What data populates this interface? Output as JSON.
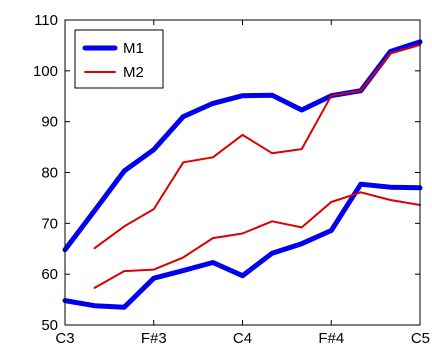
{
  "chart_data": {
    "type": "line",
    "title": "",
    "xlabel": "",
    "ylabel": "",
    "x_tick_labels": [
      "C3",
      "F#3",
      "C4",
      "F#4",
      "C5"
    ],
    "x_tick_positions": [
      0,
      6,
      12,
      18,
      24
    ],
    "xlim": [
      0,
      24
    ],
    "ylim": [
      50,
      110
    ],
    "y_ticks": [
      50,
      60,
      70,
      80,
      90,
      100,
      110
    ],
    "grid": false,
    "legend_position": "top-left",
    "series": [
      {
        "name": "M1",
        "color": "#0000ee",
        "line_width": "thick",
        "upper": {
          "x": [
            0,
            2,
            4,
            6,
            8,
            10,
            12,
            14,
            16,
            18,
            20,
            22,
            24
          ],
          "y": [
            64.8,
            72.5,
            80.3,
            84.5,
            91.0,
            93.6,
            95.1,
            95.2,
            92.3,
            95.1,
            96.1,
            103.8,
            105.7
          ]
        },
        "lower": {
          "x": [
            0,
            2,
            4,
            6,
            8,
            10,
            12,
            14,
            16,
            18,
            20,
            22,
            24
          ],
          "y": [
            54.8,
            53.8,
            53.5,
            59.2,
            60.7,
            62.3,
            59.7,
            64.1,
            66.0,
            68.6,
            77.7,
            77.1,
            77.0
          ]
        }
      },
      {
        "name": "M2",
        "color": "#dd0000",
        "line_width": "thin",
        "upper": {
          "x": [
            2,
            4,
            6,
            8,
            10,
            12,
            14,
            16,
            18,
            20,
            22,
            24
          ],
          "y": [
            65.1,
            69.4,
            72.8,
            82.0,
            83.0,
            87.4,
            83.8,
            84.6,
            95.1,
            96.1,
            103.4,
            105.1
          ]
        },
        "lower": {
          "x": [
            2,
            4,
            6,
            8,
            10,
            12,
            14,
            16,
            18,
            20,
            22,
            24
          ],
          "y": [
            57.3,
            60.6,
            60.9,
            63.3,
            67.1,
            68.0,
            70.4,
            69.2,
            74.2,
            76.1,
            74.6,
            73.6
          ]
        }
      }
    ]
  }
}
